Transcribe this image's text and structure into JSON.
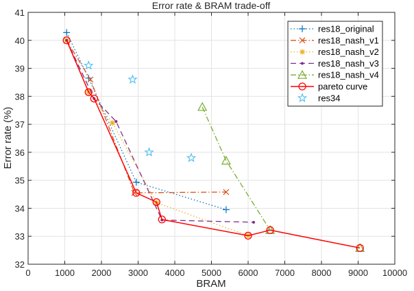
{
  "chart_data": {
    "type": "line",
    "title": "Error rate & BRAM trade-off",
    "xlabel": "BRAM",
    "ylabel": "Error rate (%)",
    "xlim": [
      0,
      10000
    ],
    "ylim": [
      32,
      41
    ],
    "xticks": [
      0,
      1000,
      2000,
      3000,
      4000,
      5000,
      6000,
      7000,
      8000,
      9000,
      10000
    ],
    "yticks": [
      32,
      33,
      34,
      35,
      36,
      37,
      38,
      39,
      40,
      41
    ],
    "grid": true,
    "legend_position": "upper right",
    "series": [
      {
        "name": "res18_original",
        "color": "#0072BD",
        "style": "dotted",
        "marker": "plus",
        "x": [
          1050,
          1650,
          2950,
          5400
        ],
        "y": [
          40.28,
          38.65,
          34.93,
          33.95
        ]
      },
      {
        "name": "res18_nash_v1",
        "color": "#D95319",
        "style": "dashdot",
        "marker": "x",
        "x": [
          1050,
          1700,
          2900,
          5400
        ],
        "y": [
          40.0,
          38.6,
          34.55,
          34.58
        ]
      },
      {
        "name": "res18_nash_v2",
        "color": "#EDB120",
        "style": "dotted",
        "marker": "asterisk",
        "x": [
          1050,
          1650,
          2300,
          3500,
          6000
        ],
        "y": [
          40.0,
          38.15,
          37.05,
          34.2,
          33.02
        ]
      },
      {
        "name": "res18_nash_v3",
        "color": "#7E2F8E",
        "style": "dashed",
        "marker": "dot",
        "x": [
          1050,
          1800,
          2400,
          3650,
          6150
        ],
        "y": [
          40.0,
          37.92,
          37.1,
          33.58,
          33.5
        ]
      },
      {
        "name": "res18_nash_v4",
        "color": "#77AC30",
        "style": "dashdot",
        "marker": "triangle",
        "x": [
          4750,
          5400,
          6600,
          9050
        ],
        "y": [
          37.62,
          35.7,
          33.22,
          32.58
        ]
      },
      {
        "name": "pareto curve",
        "color": "#FF0000",
        "style": "solid",
        "marker": "circle",
        "x": [
          1050,
          1650,
          1800,
          2950,
          3500,
          3650,
          6000,
          6600,
          9050
        ],
        "y": [
          40.0,
          38.15,
          37.92,
          34.55,
          34.22,
          33.6,
          33.02,
          33.22,
          32.58
        ]
      },
      {
        "name": "res34",
        "color": "#4DBEEE",
        "style": "none",
        "marker": "star",
        "x": [
          1650,
          2850,
          3300,
          4450
        ],
        "y": [
          39.1,
          38.6,
          36.0,
          35.8
        ]
      }
    ]
  }
}
